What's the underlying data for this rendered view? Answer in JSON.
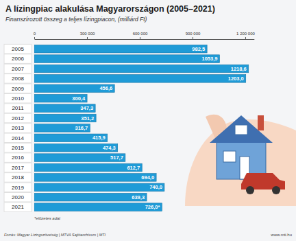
{
  "chart_data": {
    "type": "bar",
    "orientation": "horizontal",
    "title": "A lízingpiac alakulása Magyarországon (2005–2021)",
    "subtitle": "Finanszírozott összeg a teljes lízingpiacon, (milliárd Ft)",
    "categories": [
      "2005",
      "2006",
      "2007",
      "2008",
      "2009",
      "2010",
      "2011",
      "2012",
      "2013",
      "2014",
      "2015",
      "2016",
      "2017",
      "2018",
      "2019",
      "2020",
      "2021"
    ],
    "values": [
      982500,
      1053900,
      1218600,
      1203000,
      456600,
      300400,
      347300,
      351200,
      316700,
      415900,
      474300,
      517700,
      612700,
      694000,
      740000,
      639300,
      726000
    ],
    "value_labels": [
      "982,5",
      "1053,9",
      "1218,6",
      "1203,0",
      "456,6",
      "300,4",
      "347,3",
      "351,2",
      "316,7",
      "415,9",
      "474,3",
      "517,7",
      "612,7",
      "694,0",
      "740,0",
      "639,3",
      "726,0*"
    ],
    "data_labels": true,
    "color": "#1f9bd7",
    "xlim": [
      0,
      1250000
    ],
    "xticks": [
      0,
      {
        "value": 300000,
        "label": "300 000"
      },
      {
        "value": 600000,
        "label": "600 000"
      },
      {
        "value": 900000,
        "label": "900 000"
      },
      {
        "value": 1200000,
        "label": "1 200 000"
      }
    ],
    "grid": false,
    "note": "*előzetes adat",
    "source": "Forrás: Magyar Lízingszövetség | MTVA Sajtóarchívum | MTI",
    "website": "www.mti.hu"
  }
}
